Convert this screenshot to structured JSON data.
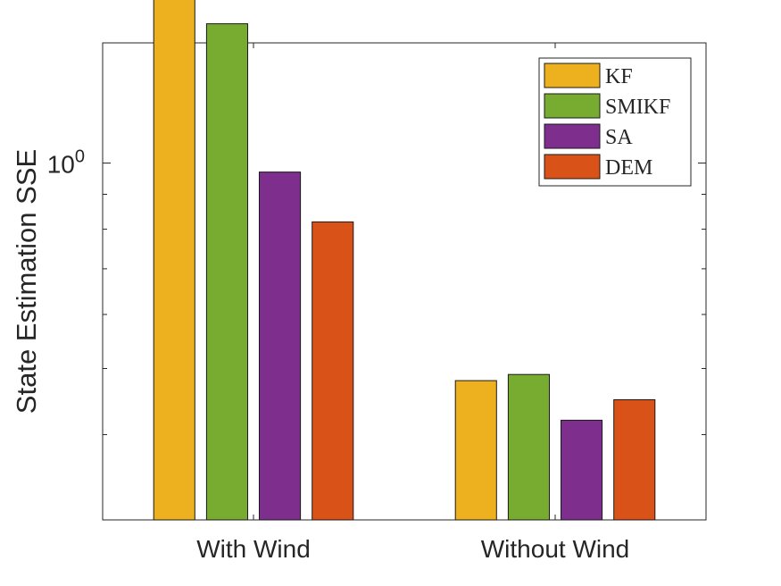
{
  "chart_data": {
    "type": "bar",
    "title": "",
    "xlabel": "",
    "ylabel": "State Estimation SSE",
    "yscale": "log",
    "ylim": [
      0.3,
      1.5
    ],
    "ytick_labels": [
      {
        "value": 1,
        "base": "10",
        "exp": "0"
      }
    ],
    "categories": [
      "With Wind",
      "Without Wind"
    ],
    "series": [
      {
        "name": "KF",
        "color": "#EDB120",
        "values": [
          2.3,
          0.48
        ]
      },
      {
        "name": "SMIKF",
        "color": "#77AC30",
        "values": [
          1.6,
          0.49
        ]
      },
      {
        "name": "SA",
        "color": "#7E2F8E",
        "values": [
          0.97,
          0.42
        ]
      },
      {
        "name": "DEM",
        "color": "#D95319",
        "values": [
          0.82,
          0.45
        ]
      }
    ],
    "legend_position": "top-right",
    "grid": false
  }
}
